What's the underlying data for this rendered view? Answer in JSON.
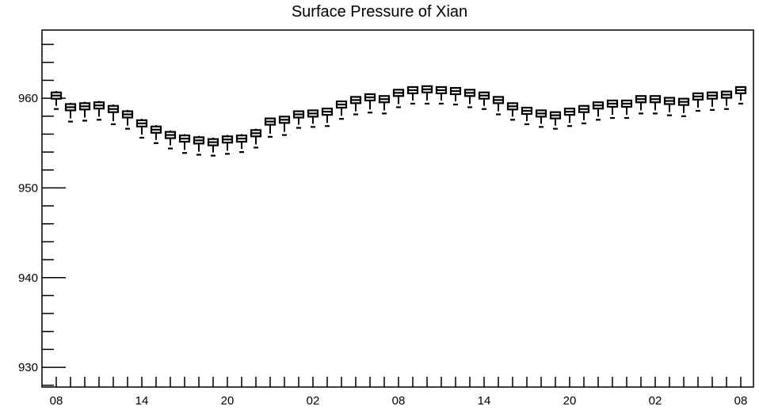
{
  "chart_data": {
    "type": "box",
    "title": "Surface Pressure of Xian",
    "xlabel": "",
    "ylabel": "",
    "ylim": [
      927.8,
      967.6
    ],
    "y_ticks": [
      930,
      940,
      950,
      960
    ],
    "x_tick_labels": [
      "08",
      "14",
      "20",
      "02",
      "08",
      "14",
      "20",
      "02",
      "08"
    ],
    "x_label_every": 6,
    "grid": false,
    "legend": "none",
    "colors": {
      "box": "#000000",
      "background": "#ffffff"
    },
    "series": [
      {
        "name": "",
        "median": [
          960.3,
          959.0,
          959.1,
          959.2,
          958.8,
          958.2,
          957.2,
          956.5,
          955.9,
          955.5,
          955.3,
          955.1,
          955.4,
          955.5,
          956.1,
          957.4,
          957.6,
          958.2,
          958.3,
          958.5,
          959.3,
          959.8,
          960.1,
          959.9,
          960.6,
          960.9,
          961.0,
          960.9,
          960.8,
          960.6,
          960.3,
          959.8,
          959.1,
          958.6,
          958.3,
          958.1,
          958.5,
          958.8,
          959.2,
          959.4,
          959.4,
          959.9,
          959.9,
          959.7,
          959.6,
          960.2,
          960.3,
          960.4,
          960.9
        ],
        "min": [
          958.8,
          957.4,
          957.5,
          957.6,
          957.1,
          956.6,
          955.6,
          955.0,
          954.4,
          953.9,
          953.7,
          953.6,
          953.8,
          954.0,
          954.5,
          955.7,
          955.9,
          956.7,
          956.8,
          956.9,
          957.7,
          958.2,
          958.4,
          958.3,
          959.0,
          959.4,
          959.4,
          959.4,
          959.3,
          959.0,
          958.8,
          958.2,
          957.6,
          957.1,
          956.8,
          956.6,
          956.9,
          957.2,
          957.6,
          957.8,
          957.8,
          958.3,
          958.3,
          958.1,
          958.0,
          958.6,
          958.7,
          958.8,
          959.4
        ],
        "max": [
          960.8,
          959.5,
          959.6,
          959.7,
          959.3,
          958.7,
          957.7,
          957.0,
          956.4,
          956.0,
          955.8,
          955.6,
          955.9,
          956.0,
          956.6,
          957.8,
          958.0,
          958.6,
          958.7,
          958.9,
          959.7,
          960.2,
          960.5,
          960.3,
          961.0,
          961.3,
          961.4,
          961.3,
          961.2,
          961.0,
          960.7,
          960.2,
          959.5,
          959.0,
          958.7,
          958.5,
          958.9,
          959.2,
          959.6,
          959.8,
          959.8,
          960.3,
          960.3,
          960.1,
          960.0,
          960.6,
          960.7,
          960.8,
          961.3
        ]
      }
    ]
  }
}
